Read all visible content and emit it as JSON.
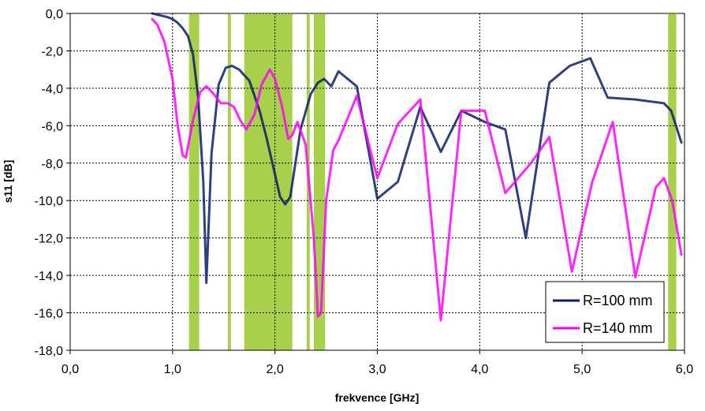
{
  "chart_data": {
    "type": "line",
    "title": "",
    "xlabel": "frekvence [GHz]",
    "ylabel": "s11 [dB]",
    "xlim": [
      0,
      6
    ],
    "ylim": [
      -18,
      0
    ],
    "x_ticks": [
      0,
      1,
      2,
      3,
      4,
      5,
      6
    ],
    "y_ticks": [
      0,
      -2,
      -4,
      -6,
      -8,
      -10,
      -12,
      -14,
      -16,
      -18
    ],
    "x_tick_labels": [
      "0,0",
      "1,0",
      "2,0",
      "3,0",
      "4,0",
      "5,0",
      "6,0"
    ],
    "y_tick_labels": [
      "0,0",
      "-2,0",
      "-4,0",
      "-6,0",
      "-8,0",
      "-10,0",
      "-12,0",
      "-14,0",
      "-16,0",
      "-18,0"
    ],
    "grid": true,
    "legend_position": "bottom-right",
    "highlight_bands": [
      {
        "x0": 1.16,
        "x1": 1.26
      },
      {
        "x0": 1.54,
        "x1": 1.57
      },
      {
        "x0": 1.7,
        "x1": 2.17
      },
      {
        "x0": 2.31,
        "x1": 2.34
      },
      {
        "x0": 2.38,
        "x1": 2.49
      },
      {
        "x0": 5.84,
        "x1": 5.92
      }
    ],
    "band_color": "#a9d04a",
    "series": [
      {
        "name": "R=100 mm",
        "color": "#0a1f6b",
        "x": [
          0.8,
          0.95,
          1.0,
          1.05,
          1.1,
          1.15,
          1.2,
          1.25,
          1.3,
          1.33,
          1.38,
          1.45,
          1.52,
          1.58,
          1.65,
          1.75,
          1.85,
          1.92,
          2.0,
          2.05,
          2.1,
          2.15,
          2.2,
          2.25,
          2.35,
          2.42,
          2.48,
          2.55,
          2.62,
          2.8,
          3.0,
          3.2,
          3.42,
          3.62,
          3.82,
          4.05,
          4.25,
          4.45,
          4.68,
          4.88,
          5.08,
          5.25,
          5.52,
          5.8,
          5.87,
          5.97
        ],
        "y": [
          0.0,
          -0.2,
          -0.3,
          -0.5,
          -0.8,
          -1.2,
          -2.2,
          -4.5,
          -9.0,
          -14.4,
          -7.5,
          -3.8,
          -2.9,
          -2.8,
          -3.0,
          -3.6,
          -5.2,
          -6.7,
          -8.6,
          -9.8,
          -10.2,
          -9.8,
          -8.0,
          -6.2,
          -4.3,
          -3.7,
          -3.5,
          -3.9,
          -3.1,
          -3.9,
          -9.9,
          -9.0,
          -5.0,
          -7.4,
          -5.2,
          -5.8,
          -6.2,
          -12.0,
          -3.7,
          -2.8,
          -2.4,
          -4.5,
          -4.6,
          -4.8,
          -5.2,
          -6.9
        ]
      },
      {
        "name": "R=140 mm",
        "color": "#ff00ff",
        "x": [
          0.8,
          0.85,
          0.92,
          1.0,
          1.05,
          1.1,
          1.13,
          1.2,
          1.27,
          1.33,
          1.4,
          1.47,
          1.54,
          1.6,
          1.66,
          1.72,
          1.8,
          1.87,
          1.95,
          2.0,
          2.07,
          2.13,
          2.17,
          2.22,
          2.3,
          2.38,
          2.42,
          2.45,
          2.5,
          2.57,
          2.62,
          2.8,
          3.0,
          3.2,
          3.42,
          3.62,
          3.82,
          4.05,
          4.25,
          4.5,
          4.68,
          4.9,
          5.1,
          5.3,
          5.52,
          5.72,
          5.8,
          5.88,
          5.97
        ],
        "y": [
          -0.3,
          -0.6,
          -1.5,
          -3.5,
          -6.0,
          -7.6,
          -7.7,
          -5.7,
          -4.2,
          -3.9,
          -4.3,
          -4.8,
          -4.8,
          -5.0,
          -5.7,
          -6.2,
          -5.4,
          -3.8,
          -3.0,
          -3.5,
          -5.0,
          -6.7,
          -6.5,
          -5.8,
          -7.0,
          -12.0,
          -16.2,
          -16.0,
          -10.0,
          -7.3,
          -6.8,
          -4.4,
          -8.8,
          -5.9,
          -4.6,
          -16.4,
          -5.2,
          -5.2,
          -9.6,
          -8.0,
          -6.6,
          -13.8,
          -9.0,
          -5.8,
          -14.1,
          -9.3,
          -8.8,
          -10.0,
          -12.9
        ]
      }
    ]
  }
}
